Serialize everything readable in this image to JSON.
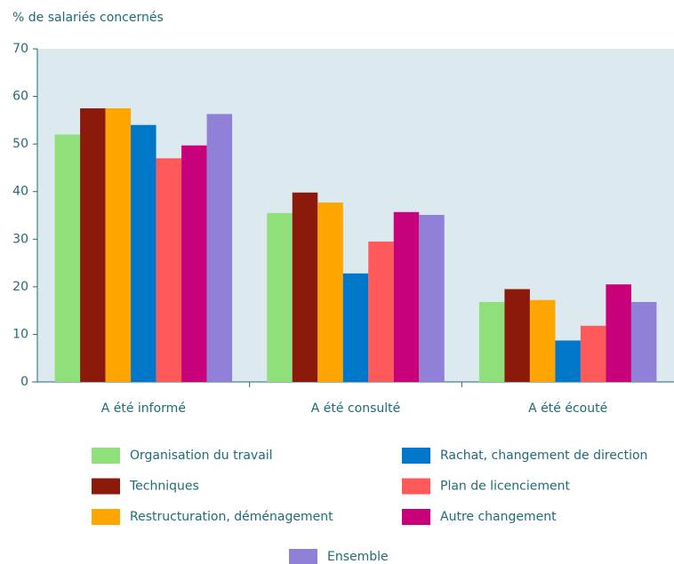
{
  "chart_data": {
    "type": "bar",
    "title": "% de salariés concernés",
    "categories": [
      "A été informé",
      "A été consulté",
      "A été écouté"
    ],
    "series": [
      {
        "name": "Organisation du travail",
        "color": "#8fe07a",
        "values": [
          52,
          35.5,
          16.8
        ]
      },
      {
        "name": "Techniques",
        "color": "#8b1a0a",
        "values": [
          57.5,
          39.8,
          19.5
        ]
      },
      {
        "name": "Restructuration, déménagement",
        "color": "#ffa500",
        "values": [
          57.5,
          37.7,
          17.2
        ]
      },
      {
        "name": "Rachat, changement de direction",
        "color": "#0077c8",
        "values": [
          54,
          22.8,
          8.7
        ]
      },
      {
        "name": "Plan de licenciement",
        "color": "#ff5a5a",
        "values": [
          47,
          29.5,
          11.8
        ]
      },
      {
        "name": "Autre changement",
        "color": "#c8007a",
        "values": [
          49.7,
          35.7,
          20.5
        ]
      },
      {
        "name": "Ensemble",
        "color": "#9180d8",
        "values": [
          56.3,
          35.1,
          16.8
        ]
      }
    ],
    "ylim": [
      0,
      70
    ],
    "yticks": [
      0,
      10,
      20,
      30,
      40,
      50,
      60,
      70
    ],
    "grid": false
  }
}
